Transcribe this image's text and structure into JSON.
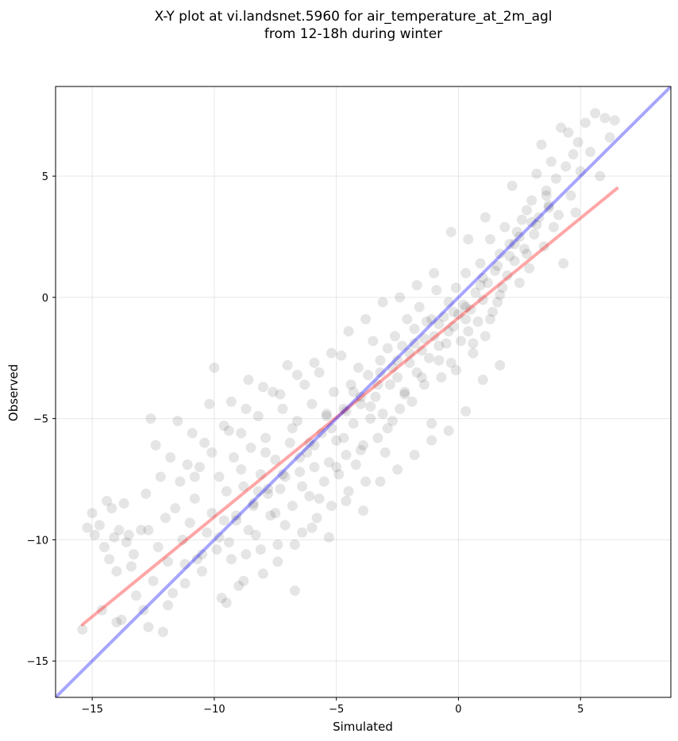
{
  "chart_data": {
    "type": "scatter",
    "title": "X-Y plot at vi.landsnet.5960 for air_temperature_at_2m_agl",
    "subtitle": "from 12-18h during winter",
    "xlabel": "Simulated",
    "ylabel": "Observed",
    "xlim": [
      -16.5,
      8.7
    ],
    "ylim": [
      -16.5,
      8.7
    ],
    "xticks": [
      -15,
      -10,
      -5,
      0,
      5
    ],
    "yticks": [
      -15,
      -10,
      -5,
      0,
      5
    ],
    "xtick_labels": [
      "−15",
      "−10",
      "−5",
      "0",
      "5"
    ],
    "ytick_labels": [
      "−15",
      "−10",
      "−5",
      "0",
      "5"
    ],
    "grid": true,
    "point_color": "#000000",
    "point_alpha": 0.1,
    "points": [
      [
        -15.4,
        -13.7
      ],
      [
        -15.2,
        -9.5
      ],
      [
        -15.0,
        -8.9
      ],
      [
        -14.9,
        -9.8
      ],
      [
        -14.7,
        -9.4
      ],
      [
        -14.5,
        -10.3
      ],
      [
        -14.4,
        -8.4
      ],
      [
        -14.3,
        -10.8
      ],
      [
        -14.2,
        -8.7
      ],
      [
        -14.1,
        -9.9
      ],
      [
        -14.0,
        -11.3
      ],
      [
        -13.9,
        -9.6
      ],
      [
        -13.8,
        -13.3
      ],
      [
        -13.7,
        -8.5
      ],
      [
        -13.6,
        -10.1
      ],
      [
        -13.5,
        -9.8
      ],
      [
        -13.4,
        -11.1
      ],
      [
        -13.3,
        -10.6
      ],
      [
        -13.2,
        -12.3
      ],
      [
        -13.0,
        -9.6
      ],
      [
        -12.9,
        -12.9
      ],
      [
        -12.8,
        -8.1
      ],
      [
        -12.7,
        -9.6
      ],
      [
        -12.6,
        -5.0
      ],
      [
        -12.5,
        -11.7
      ],
      [
        -12.4,
        -6.1
      ],
      [
        -12.3,
        -10.3
      ],
      [
        -12.2,
        -7.4
      ],
      [
        -12.1,
        -13.8
      ],
      [
        -12.0,
        -9.1
      ],
      [
        -11.9,
        -10.9
      ],
      [
        -11.8,
        -6.6
      ],
      [
        -11.7,
        -12.2
      ],
      [
        -11.6,
        -8.7
      ],
      [
        -11.5,
        -5.1
      ],
      [
        -11.4,
        -7.6
      ],
      [
        -11.3,
        -10.0
      ],
      [
        -11.2,
        -11.8
      ],
      [
        -11.1,
        -6.9
      ],
      [
        -11.0,
        -9.3
      ],
      [
        -10.9,
        -5.6
      ],
      [
        -10.8,
        -8.3
      ],
      [
        -10.7,
        -10.8
      ],
      [
        -10.6,
        -7.0
      ],
      [
        -10.5,
        -11.3
      ],
      [
        -10.4,
        -6.0
      ],
      [
        -10.3,
        -9.7
      ],
      [
        -10.2,
        -4.4
      ],
      [
        -10.1,
        -8.9
      ],
      [
        -10.0,
        -2.9
      ],
      [
        -9.9,
        -10.4
      ],
      [
        -9.8,
        -7.4
      ],
      [
        -9.7,
        -12.4
      ],
      [
        -9.6,
        -5.3
      ],
      [
        -9.5,
        -8.0
      ],
      [
        -9.4,
        -10.1
      ],
      [
        -9.3,
        -4.3
      ],
      [
        -9.2,
        -6.6
      ],
      [
        -9.1,
        -9.2
      ],
      [
        -9.0,
        -11.9
      ],
      [
        -8.9,
        -5.6
      ],
      [
        -8.8,
        -7.8
      ],
      [
        -8.7,
        -10.6
      ],
      [
        -8.6,
        -3.4
      ],
      [
        -8.5,
        -6.2
      ],
      [
        -8.4,
        -8.5
      ],
      [
        -8.3,
        -9.8
      ],
      [
        -8.2,
        -4.9
      ],
      [
        -8.1,
        -7.3
      ],
      [
        -8.0,
        -11.4
      ],
      [
        -7.9,
        -5.8
      ],
      [
        -7.8,
        -8.1
      ],
      [
        -7.7,
        -9.0
      ],
      [
        -7.6,
        -3.9
      ],
      [
        -7.5,
        -6.7
      ],
      [
        -7.4,
        -10.2
      ],
      [
        -7.3,
        -7.9
      ],
      [
        -7.2,
        -4.6
      ],
      [
        -7.1,
        -9.4
      ],
      [
        -7.0,
        -2.8
      ],
      [
        -6.9,
        -6.0
      ],
      [
        -6.8,
        -8.6
      ],
      [
        -6.7,
        -12.1
      ],
      [
        -6.6,
        -5.1
      ],
      [
        -6.5,
        -7.2
      ],
      [
        -6.4,
        -9.7
      ],
      [
        -6.3,
        -3.6
      ],
      [
        -6.2,
        -6.4
      ],
      [
        -6.1,
        -8.2
      ],
      [
        -6.0,
        -4.4
      ],
      [
        -5.9,
        -7.0
      ],
      [
        -5.8,
        -9.1
      ],
      [
        -5.7,
        -3.1
      ],
      [
        -5.6,
        -5.6
      ],
      [
        -5.5,
        -7.6
      ],
      [
        -5.4,
        -4.8
      ],
      [
        -5.3,
        -6.8
      ],
      [
        -5.2,
        -8.6
      ],
      [
        -5.1,
        -3.9
      ],
      [
        -5.0,
        -5.9
      ],
      [
        -4.9,
        -7.3
      ],
      [
        -4.8,
        -2.4
      ],
      [
        -4.7,
        -4.6
      ],
      [
        -4.6,
        -6.5
      ],
      [
        -4.5,
        -8.0
      ],
      [
        -4.4,
        -3.6
      ],
      [
        -4.3,
        -5.2
      ],
      [
        -4.2,
        -6.9
      ],
      [
        -4.1,
        -2.9
      ],
      [
        -4.0,
        -4.4
      ],
      [
        -3.9,
        -6.1
      ],
      [
        -3.8,
        -7.6
      ],
      [
        -3.7,
        -3.2
      ],
      [
        -3.6,
        -5.0
      ],
      [
        -3.5,
        -1.8
      ],
      [
        -3.4,
        -4.1
      ],
      [
        -3.3,
        -5.8
      ],
      [
        -3.2,
        -2.6
      ],
      [
        -3.1,
        -4.8
      ],
      [
        -3.0,
        -6.4
      ],
      [
        -2.9,
        -2.1
      ],
      [
        -2.8,
        -3.6
      ],
      [
        -2.7,
        -5.1
      ],
      [
        -2.6,
        -1.6
      ],
      [
        -2.5,
        -3.3
      ],
      [
        -2.4,
        -4.6
      ],
      [
        -2.3,
        -2.0
      ],
      [
        -2.2,
        -3.9
      ],
      [
        -2.1,
        -0.9
      ],
      [
        -2.0,
        -2.7
      ],
      [
        -1.9,
        -4.3
      ],
      [
        -1.8,
        -1.3
      ],
      [
        -1.7,
        -3.1
      ],
      [
        -1.6,
        -0.4
      ],
      [
        -1.5,
        -2.2
      ],
      [
        -1.4,
        -3.6
      ],
      [
        -1.3,
        -1.0
      ],
      [
        -1.2,
        -2.5
      ],
      [
        -1.1,
        -5.9
      ],
      [
        -1.0,
        -1.6
      ],
      [
        -0.9,
        0.3
      ],
      [
        -0.8,
        -2.0
      ],
      [
        -0.7,
        -3.3
      ],
      [
        -0.6,
        -0.8
      ],
      [
        -0.5,
        -1.9
      ],
      [
        -0.4,
        -0.2
      ],
      [
        -0.3,
        -2.7
      ],
      [
        -0.2,
        -1.2
      ],
      [
        -0.1,
        0.4
      ],
      [
        0.0,
        -0.7
      ],
      [
        0.1,
        -1.8
      ],
      [
        0.2,
        -0.3
      ],
      [
        0.3,
        1.0
      ],
      [
        0.4,
        -1.4
      ],
      [
        0.5,
        -0.5
      ],
      [
        0.6,
        -2.3
      ],
      [
        0.7,
        0.2
      ],
      [
        0.8,
        -1.0
      ],
      [
        0.9,
        1.4
      ],
      [
        1.0,
        -0.1
      ],
      [
        1.1,
        -1.6
      ],
      [
        1.2,
        0.6
      ],
      [
        1.3,
        2.4
      ],
      [
        1.4,
        -0.6
      ],
      [
        1.5,
        1.1
      ],
      [
        1.6,
        -0.2
      ],
      [
        1.7,
        1.8
      ],
      [
        1.8,
        0.4
      ],
      [
        1.9,
        2.9
      ],
      [
        2.0,
        0.9
      ],
      [
        2.1,
        2.2
      ],
      [
        2.2,
        4.6
      ],
      [
        2.3,
        1.5
      ],
      [
        2.4,
        2.7
      ],
      [
        2.5,
        0.6
      ],
      [
        2.6,
        3.2
      ],
      [
        2.7,
        2.0
      ],
      [
        2.8,
        3.6
      ],
      [
        2.9,
        1.2
      ],
      [
        3.0,
        4.0
      ],
      [
        3.1,
        2.6
      ],
      [
        3.2,
        5.1
      ],
      [
        3.3,
        3.3
      ],
      [
        3.4,
        6.3
      ],
      [
        3.5,
        2.1
      ],
      [
        3.6,
        4.4
      ],
      [
        3.7,
        3.8
      ],
      [
        3.8,
        5.6
      ],
      [
        3.9,
        2.9
      ],
      [
        4.0,
        4.9
      ],
      [
        4.1,
        3.4
      ],
      [
        4.2,
        7.0
      ],
      [
        4.3,
        1.4
      ],
      [
        4.4,
        5.4
      ],
      [
        4.5,
        6.8
      ],
      [
        4.6,
        4.2
      ],
      [
        4.7,
        5.9
      ],
      [
        4.8,
        3.5
      ],
      [
        4.9,
        6.4
      ],
      [
        5.0,
        5.2
      ],
      [
        5.2,
        7.2
      ],
      [
        5.4,
        6.0
      ],
      [
        5.6,
        7.6
      ],
      [
        5.8,
        5.0
      ],
      [
        6.0,
        7.4
      ],
      [
        6.2,
        6.6
      ],
      [
        6.4,
        7.3
      ],
      [
        -14.6,
        -12.9
      ],
      [
        -14.0,
        -13.4
      ],
      [
        -12.7,
        -13.6
      ],
      [
        -11.9,
        -12.7
      ],
      [
        -11.2,
        -11.0
      ],
      [
        -10.5,
        -10.6
      ],
      [
        -9.8,
        -9.9
      ],
      [
        -9.1,
        -9.0
      ],
      [
        -8.4,
        -8.6
      ],
      [
        -7.8,
        -7.9
      ],
      [
        -7.1,
        -7.4
      ],
      [
        -6.5,
        -6.6
      ],
      [
        -5.9,
        -6.1
      ],
      [
        -5.2,
        -5.4
      ],
      [
        -4.6,
        -4.7
      ],
      [
        -4.0,
        -4.1
      ],
      [
        -3.3,
        -3.6
      ],
      [
        -2.7,
        -2.9
      ],
      [
        -2.0,
        -2.3
      ],
      [
        -1.4,
        -1.7
      ],
      [
        -0.8,
        -1.1
      ],
      [
        -0.2,
        -0.6
      ],
      [
        0.3,
        -0.4
      ],
      [
        0.9,
        0.5
      ],
      [
        1.6,
        1.3
      ],
      [
        2.3,
        2.2
      ],
      [
        3.0,
        3.1
      ],
      [
        3.7,
        3.7
      ],
      [
        -9.6,
        -9.2
      ],
      [
        -9.3,
        -10.8
      ],
      [
        -8.9,
        -7.1
      ],
      [
        -8.6,
        -9.6
      ],
      [
        -8.2,
        -8.0
      ],
      [
        -7.9,
        -6.4
      ],
      [
        -7.5,
        -8.9
      ],
      [
        -7.2,
        -7.3
      ],
      [
        -6.8,
        -5.4
      ],
      [
        -6.4,
        -7.8
      ],
      [
        -6.1,
        -6.0
      ],
      [
        -5.7,
        -8.3
      ],
      [
        -5.4,
        -4.9
      ],
      [
        -5.0,
        -7.0
      ],
      [
        -4.7,
        -5.8
      ],
      [
        -4.3,
        -3.9
      ],
      [
        -4.0,
        -6.3
      ],
      [
        -3.6,
        -4.5
      ],
      [
        -3.2,
        -3.1
      ],
      [
        -2.9,
        -5.4
      ],
      [
        -2.5,
        -2.6
      ],
      [
        -2.2,
        -4.0
      ],
      [
        -1.8,
        -1.9
      ],
      [
        -1.5,
        -3.3
      ],
      [
        -1.1,
        -0.9
      ],
      [
        -0.8,
        -2.6
      ],
      [
        -0.4,
        -1.4
      ],
      [
        -0.1,
        -3.0
      ],
      [
        0.3,
        -0.9
      ],
      [
        0.6,
        -1.9
      ],
      [
        1.0,
        0.8
      ],
      [
        1.3,
        -0.9
      ],
      [
        1.7,
        0.1
      ],
      [
        2.1,
        1.7
      ],
      [
        2.5,
        2.5
      ],
      [
        2.8,
        1.8
      ],
      [
        3.2,
        3.0
      ],
      [
        3.6,
        4.2
      ],
      [
        -10.8,
        -7.4
      ],
      [
        -10.1,
        -6.4
      ],
      [
        -9.4,
        -5.5
      ],
      [
        -8.7,
        -4.6
      ],
      [
        -8.0,
        -3.7
      ],
      [
        -7.3,
        -4.0
      ],
      [
        -6.6,
        -3.2
      ],
      [
        -5.9,
        -2.7
      ],
      [
        -5.2,
        -2.3
      ],
      [
        -4.5,
        -1.4
      ],
      [
        -3.8,
        -0.9
      ],
      [
        -3.1,
        -0.2
      ],
      [
        -2.4,
        0.0
      ],
      [
        -1.7,
        0.5
      ],
      [
        -1.0,
        1.0
      ],
      [
        -0.3,
        2.7
      ],
      [
        0.4,
        2.4
      ],
      [
        1.1,
        3.3
      ],
      [
        -9.5,
        -12.6
      ],
      [
        -8.8,
        -11.7
      ],
      [
        -8.1,
        -10.4
      ],
      [
        -7.4,
        -10.9
      ],
      [
        -6.7,
        -10.2
      ],
      [
        -6.0,
        -9.5
      ],
      [
        -5.3,
        -9.9
      ],
      [
        -4.6,
        -8.4
      ],
      [
        -3.9,
        -8.8
      ],
      [
        -3.2,
        -7.6
      ],
      [
        -2.5,
        -7.1
      ],
      [
        -1.8,
        -6.5
      ],
      [
        -1.1,
        -5.2
      ],
      [
        -0.4,
        -5.5
      ],
      [
        0.3,
        -4.7
      ],
      [
        1.0,
        -3.4
      ],
      [
        1.7,
        -2.8
      ]
    ],
    "series": [
      {
        "kind": "line",
        "color": "#ff0000",
        "alpha": 0.35,
        "x": [
          -15.4,
          6.5
        ],
        "y": [
          -13.5,
          4.5
        ]
      },
      {
        "kind": "line",
        "color": "#0000ff",
        "alpha": 0.35,
        "x": [
          -16.5,
          8.7
        ],
        "y": [
          -16.5,
          8.7
        ]
      }
    ]
  }
}
